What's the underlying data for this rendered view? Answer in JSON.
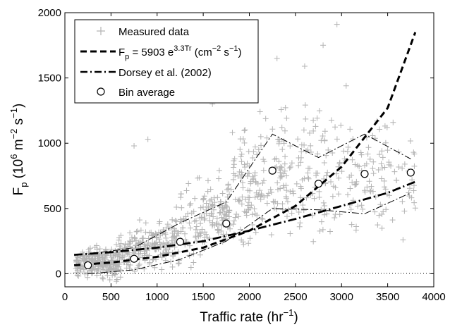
{
  "chart_data": {
    "type": "scatter",
    "xlabel_main": "Traffic rate (hr",
    "xlabel_sup": "−1",
    "xlabel_end": ")",
    "ylabel_main": "F",
    "ylabel_sub": "p",
    "ylabel_rest": " (10",
    "ylabel_sup1": "6",
    "ylabel_mid": " m",
    "ylabel_sup2": "−2",
    "ylabel_s": " s",
    "ylabel_sup3": "−1",
    "ylabel_end": ")",
    "xlim": [
      0,
      4000
    ],
    "ylim": [
      -100,
      2000
    ],
    "x_ticks": [
      0,
      500,
      1000,
      1500,
      2000,
      2500,
      3000,
      3500,
      4000
    ],
    "y_ticks": [
      0,
      500,
      1000,
      1500,
      2000
    ],
    "grid": false,
    "legend_position": "top-left",
    "legend": {
      "measured": "Measured data",
      "fit_main": "F",
      "fit_sub": "p",
      "fit_eq": " = 5903 e",
      "fit_sup": "3.3Tr",
      "fit_units": " (cm",
      "fit_units_sup": "−2",
      "fit_units_s": " s",
      "fit_units_sup2": "−1",
      "fit_units_end": ")",
      "dorsey": "Dorsey et al. (2002)",
      "bin": "Bin average"
    },
    "colors": {
      "measured": "#b4b4b4",
      "lines": "#000000"
    },
    "bin_average": {
      "x": [
        250,
        750,
        1250,
        1750,
        2250,
        2750,
        3250,
        3750
      ],
      "y": [
        65,
        115,
        245,
        385,
        790,
        690,
        765,
        775
      ]
    },
    "fit_curve": {
      "x": [
        100,
        500,
        1000,
        1500,
        2000,
        2500,
        3000,
        3500,
        3800
      ],
      "y": [
        65,
        86,
        130,
        200,
        330,
        520,
        820,
        1270,
        1850
      ]
    },
    "dorsey_curve": {
      "x": [
        100,
        500,
        1000,
        1500,
        2000,
        2500,
        3000,
        3500,
        3800
      ],
      "y": [
        145,
        165,
        200,
        250,
        330,
        420,
        520,
        620,
        705
      ]
    },
    "bin_upper_band": {
      "x": [
        250,
        750,
        1250,
        1750,
        2250,
        2750,
        3250,
        3750
      ],
      "y": [
        150,
        200,
        390,
        550,
        1070,
        890,
        1070,
        880
      ]
    },
    "bin_lower_band": {
      "x": [
        250,
        750,
        1250,
        1750,
        2250,
        2750,
        3250,
        3750
      ],
      "y": [
        0,
        30,
        110,
        250,
        500,
        490,
        460,
        620
      ]
    },
    "measured_data_description": "Approximately 1000 scattered points between x=100 and x=3800 hr-1, spread mostly between 0 and 1500"
  }
}
